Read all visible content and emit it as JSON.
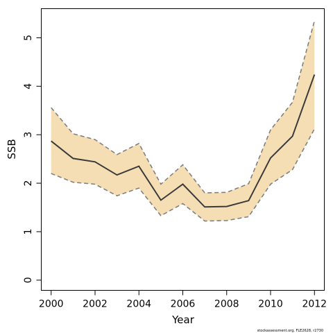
{
  "chart_data": {
    "type": "line",
    "xlabel": "Year",
    "ylabel": "SSB",
    "xlim": [
      1999.55,
      2012.45
    ],
    "ylim": [
      -0.21,
      5.6
    ],
    "xticks": [
      2000,
      2002,
      2004,
      2006,
      2008,
      2010,
      2012
    ],
    "yticks": [
      0,
      1,
      2,
      3,
      4,
      5
    ],
    "x": [
      2000,
      2001,
      2002,
      2003,
      2004,
      2005,
      2006,
      2007,
      2008,
      2009,
      2010,
      2011,
      2012
    ],
    "series": [
      {
        "role": "estimate",
        "values": [
          2.87,
          2.51,
          2.44,
          2.17,
          2.35,
          1.65,
          1.98,
          1.51,
          1.52,
          1.64,
          2.52,
          2.97,
          4.24
        ]
      },
      {
        "role": "upper",
        "values": [
          3.56,
          3.02,
          2.9,
          2.59,
          2.82,
          1.98,
          2.38,
          1.8,
          1.81,
          1.99,
          3.1,
          3.67,
          5.35
        ]
      },
      {
        "role": "lower",
        "values": [
          2.2,
          2.02,
          1.98,
          1.74,
          1.9,
          1.33,
          1.58,
          1.22,
          1.23,
          1.31,
          1.98,
          2.28,
          3.12
        ]
      }
    ],
    "band_color": "#f5deb3",
    "line_color": "#3a3a3a",
    "bound_color": "#808080",
    "grid": false,
    "legend": "none"
  },
  "credit": "stockassessment.org, FLE2628, r2730"
}
